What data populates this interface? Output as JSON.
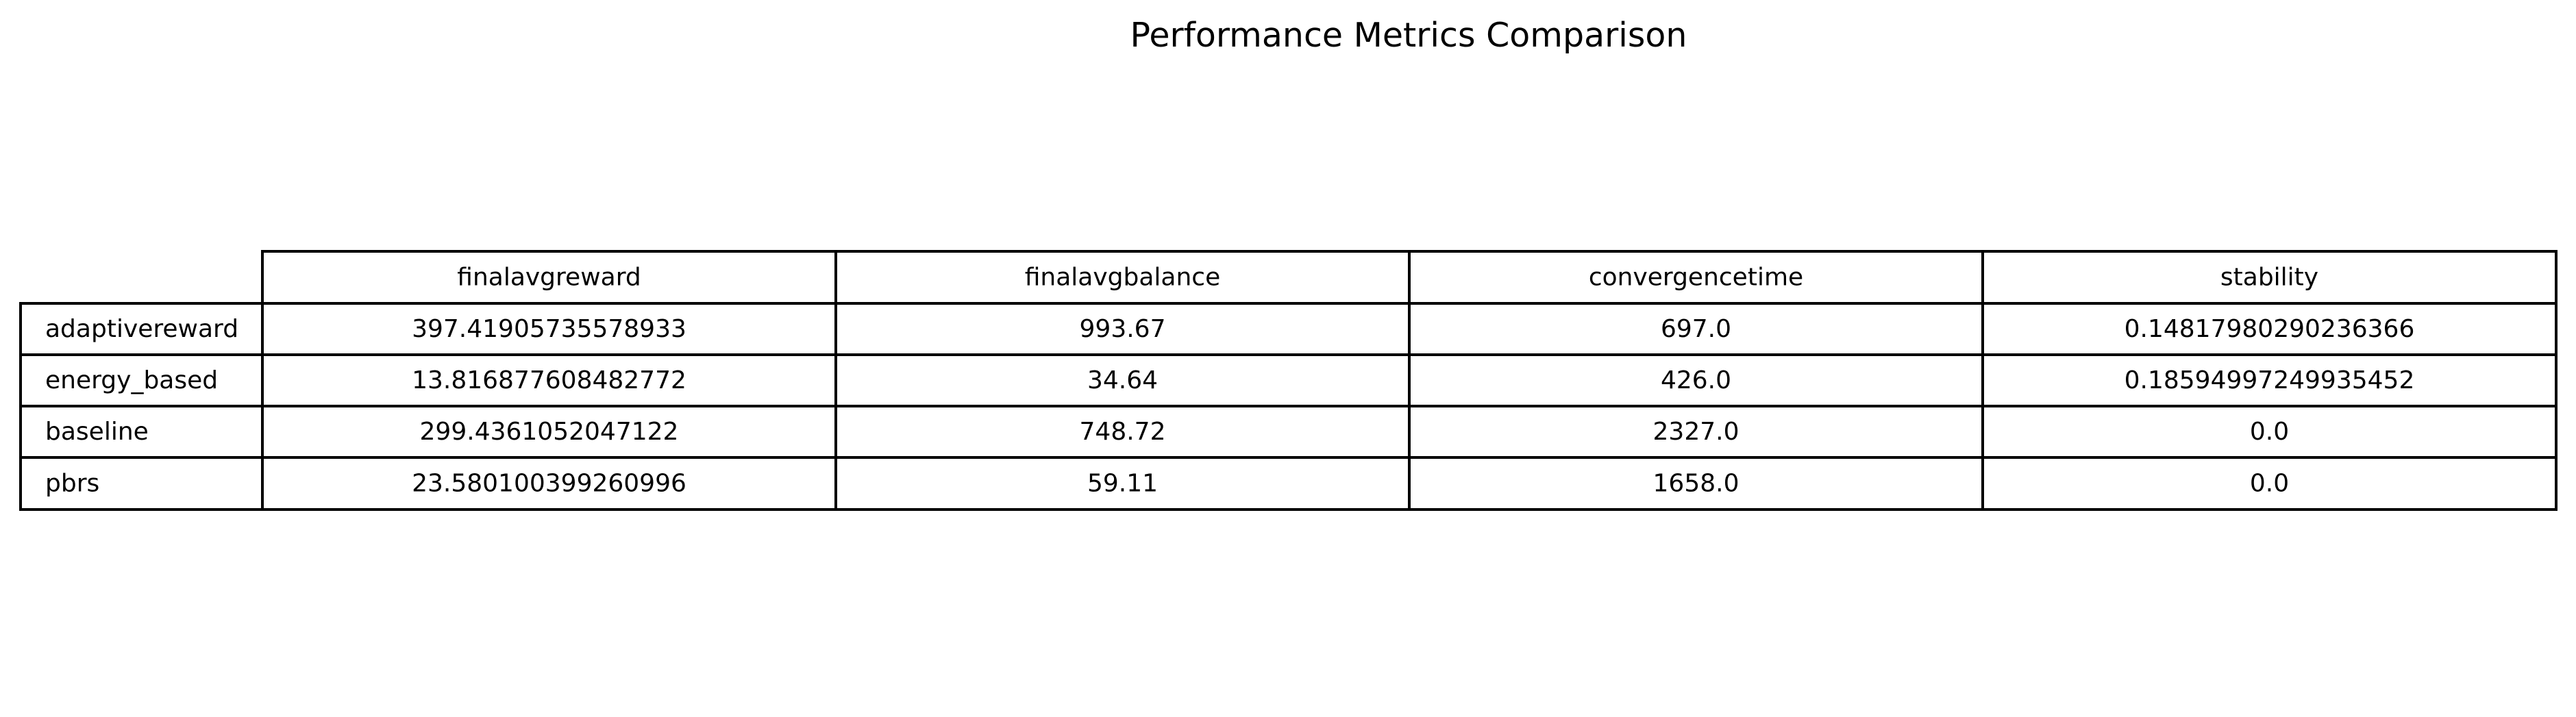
{
  "chart_data": {
    "type": "table",
    "title": "Performance Metrics Comparison",
    "columns": [
      "finalavgreward",
      "finalavgbalance",
      "convergencetime",
      "stability"
    ],
    "rows": [
      {
        "label": "adaptivereward",
        "cells": [
          "397.41905735578933",
          "993.67",
          "697.0",
          "0.14817980290236366"
        ]
      },
      {
        "label": "energy_based",
        "cells": [
          "13.816877608482772",
          "34.64",
          "426.0",
          "0.18594997249935452"
        ]
      },
      {
        "label": "baseline",
        "cells": [
          "299.4361052047122",
          "748.72",
          "2327.0",
          "0.0"
        ]
      },
      {
        "label": "pbrs",
        "cells": [
          "23.580100399260996",
          "59.11",
          "1658.0",
          "0.0"
        ]
      }
    ]
  }
}
